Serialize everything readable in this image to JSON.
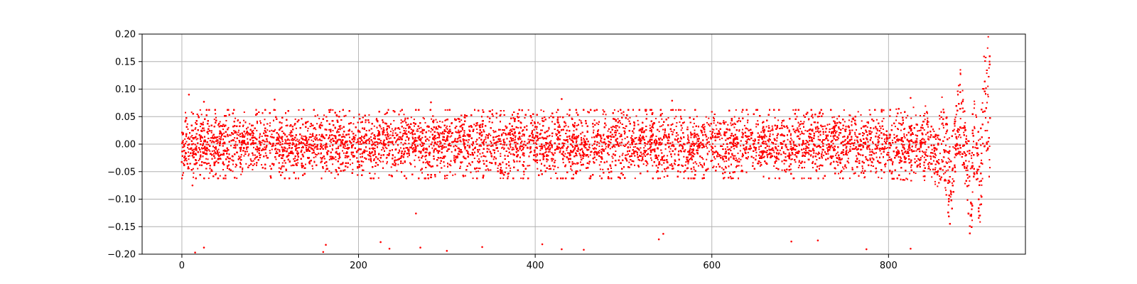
{
  "chart_data": {
    "type": "scatter",
    "title": "",
    "xlabel": "",
    "ylabel": "",
    "xlim": [
      -45,
      955
    ],
    "ylim": [
      -0.2,
      0.2
    ],
    "grid": true,
    "legend": "none",
    "x_ticks": [
      {
        "value": 0,
        "label": "0"
      },
      {
        "value": 200,
        "label": "200"
      },
      {
        "value": 400,
        "label": "400"
      },
      {
        "value": 600,
        "label": "600"
      },
      {
        "value": 800,
        "label": "800"
      }
    ],
    "y_ticks": [
      {
        "value": 0.2,
        "label": "0.20"
      },
      {
        "value": 0.15,
        "label": "0.15"
      },
      {
        "value": 0.1,
        "label": "0.10"
      },
      {
        "value": 0.05,
        "label": "0.05"
      },
      {
        "value": 0.0,
        "label": "0.00"
      },
      {
        "value": -0.05,
        "label": "−0.05"
      },
      {
        "value": -0.1,
        "label": "−0.10"
      },
      {
        "value": -0.15,
        "label": "−0.15"
      },
      {
        "value": -0.2,
        "label": "−0.20"
      }
    ],
    "series": [
      {
        "color": "#ff0000",
        "band": {
          "x_range": [
            0,
            915
          ],
          "envelope": [
            {
              "x": 0,
              "lower": -0.04,
              "upper": 0.04
            },
            {
              "x": 200,
              "lower": -0.04,
              "upper": 0.04
            },
            {
              "x": 400,
              "lower": -0.04,
              "upper": 0.04
            },
            {
              "x": 600,
              "lower": -0.04,
              "upper": 0.04
            },
            {
              "x": 800,
              "lower": -0.04,
              "upper": 0.04
            },
            {
              "x": 845,
              "lower": -0.045,
              "upper": 0.045
            },
            {
              "x": 855,
              "lower": -0.085,
              "upper": 0.02
            },
            {
              "x": 862,
              "lower": -0.05,
              "upper": 0.11
            },
            {
              "x": 870,
              "lower": -0.16,
              "upper": 0.0
            },
            {
              "x": 876,
              "lower": -0.04,
              "upper": 0.06
            },
            {
              "x": 882,
              "lower": -0.02,
              "upper": 0.15
            },
            {
              "x": 888,
              "lower": -0.09,
              "upper": 0.02
            },
            {
              "x": 893,
              "lower": -0.19,
              "upper": 0.0
            },
            {
              "x": 898,
              "lower": -0.04,
              "upper": 0.12
            },
            {
              "x": 903,
              "lower": -0.17,
              "upper": 0.0
            },
            {
              "x": 908,
              "lower": -0.03,
              "upper": 0.2
            },
            {
              "x": 912,
              "lower": -0.02,
              "upper": 0.2
            },
            {
              "x": 915,
              "lower": -0.09,
              "upper": 0.2
            }
          ]
        },
        "outliers": [
          {
            "x": 8,
            "y": 0.09
          },
          {
            "x": 12,
            "y": -0.075
          },
          {
            "x": 25,
            "y": 0.077
          },
          {
            "x": 105,
            "y": 0.081
          },
          {
            "x": 282,
            "y": 0.076
          },
          {
            "x": 265,
            "y": -0.126
          },
          {
            "x": 430,
            "y": 0.082
          },
          {
            "x": 555,
            "y": 0.079
          },
          {
            "x": 825,
            "y": 0.084
          },
          {
            "x": 15,
            "y": -0.197
          },
          {
            "x": 25,
            "y": -0.188
          },
          {
            "x": 160,
            "y": -0.196
          },
          {
            "x": 163,
            "y": -0.183
          },
          {
            "x": 225,
            "y": -0.178
          },
          {
            "x": 235,
            "y": -0.19
          },
          {
            "x": 270,
            "y": -0.188
          },
          {
            "x": 300,
            "y": -0.194
          },
          {
            "x": 340,
            "y": -0.187
          },
          {
            "x": 408,
            "y": -0.182
          },
          {
            "x": 430,
            "y": -0.191
          },
          {
            "x": 455,
            "y": -0.192
          },
          {
            "x": 540,
            "y": -0.173
          },
          {
            "x": 545,
            "y": -0.163
          },
          {
            "x": 690,
            "y": -0.177
          },
          {
            "x": 720,
            "y": -0.175
          },
          {
            "x": 775,
            "y": -0.191
          },
          {
            "x": 825,
            "y": -0.19
          }
        ]
      }
    ]
  }
}
